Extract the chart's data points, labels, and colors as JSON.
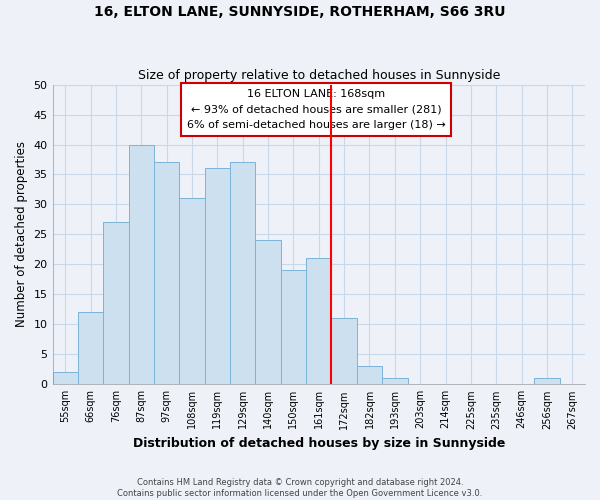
{
  "title": "16, ELTON LANE, SUNNYSIDE, ROTHERHAM, S66 3RU",
  "subtitle": "Size of property relative to detached houses in Sunnyside",
  "xlabel": "Distribution of detached houses by size in Sunnyside",
  "ylabel": "Number of detached properties",
  "footer_lines": [
    "Contains HM Land Registry data © Crown copyright and database right 2024.",
    "Contains public sector information licensed under the Open Government Licence v3.0."
  ],
  "bin_labels": [
    "55sqm",
    "66sqm",
    "76sqm",
    "87sqm",
    "97sqm",
    "108sqm",
    "119sqm",
    "129sqm",
    "140sqm",
    "150sqm",
    "161sqm",
    "172sqm",
    "182sqm",
    "193sqm",
    "203sqm",
    "214sqm",
    "225sqm",
    "235sqm",
    "246sqm",
    "256sqm",
    "267sqm"
  ],
  "bar_heights": [
    2,
    12,
    27,
    40,
    37,
    31,
    36,
    37,
    24,
    19,
    21,
    11,
    3,
    1,
    0,
    0,
    0,
    0,
    0,
    1,
    0
  ],
  "bar_color": "#cce0f0",
  "bar_edge_color": "#7ab4d8",
  "ylim": [
    0,
    50
  ],
  "yticks": [
    0,
    5,
    10,
    15,
    20,
    25,
    30,
    35,
    40,
    45,
    50
  ],
  "property_line_label": "16 ELTON LANE: 168sqm",
  "annotation_line1": "← 93% of detached houses are smaller (281)",
  "annotation_line2": "6% of semi-detached houses are larger (18) →",
  "grid_color": "#c8d8e8",
  "background_color": "#eef2f8",
  "plot_bg_color": "#eef2f8"
}
